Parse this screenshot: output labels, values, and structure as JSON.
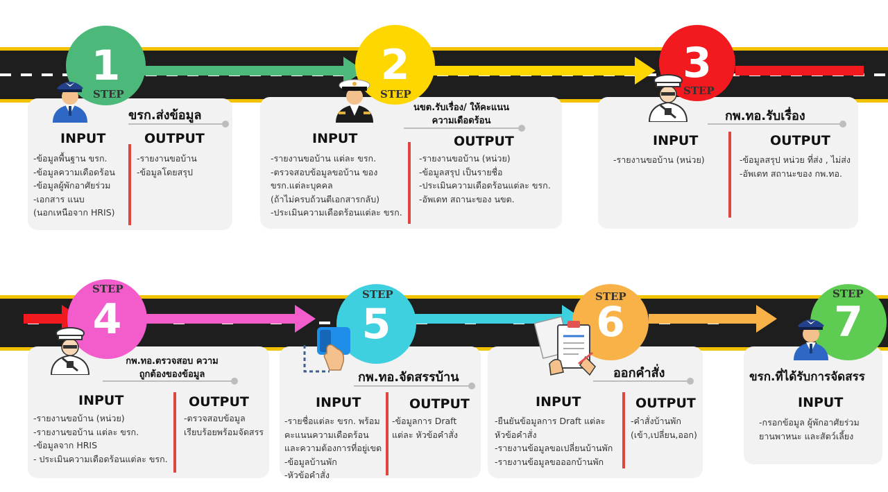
{
  "step_label": "STEP",
  "steps": [
    {
      "number": "1",
      "color": "#4cb87a",
      "title": "ขรก.ส่งข้อมูล",
      "input_label": "INPUT",
      "output_label": "OUTPUT",
      "inputs": [
        "-ข้อมูลพื้นฐาน ขรก.",
        "-ข้อมูลความเดือดร้อน",
        "-ข้อมูลผู้พักอาศัยร่วม",
        "-เอกสาร แนบ",
        "(นอกเหนือจาก HRIS)"
      ],
      "outputs": [
        "-รายงานขอบ้าน",
        "-ข้อมูลโดยสรุป"
      ]
    },
    {
      "number": "2",
      "color": "#fed700",
      "title": "นขต.รับเรื่อง/ ให้คะแนนความเดือดร้อน",
      "input_label": "INPUT",
      "output_label": "OUTPUT",
      "inputs": [
        "-รายงานขอบ้าน แต่ละ ขรก.",
        "-ตรวจสอบข้อมูลขอบ้าน ของ",
        "ขรก.แต่ละบุคคล",
        "(ถ้าไม่ครบถ้วนตีเอกสารกลับ)",
        "-ประเมินความเดือดร้อนแต่ละ ขรก."
      ],
      "outputs": [
        "-รายงานขอบ้าน (หน่วย)",
        "-ข้อมูลสรุป เป็นรายชื่อ",
        "-ประเมินความเดือดร้อนแต่ละ ขรก.",
        "-อัพเดท สถานะของ นขต."
      ]
    },
    {
      "number": "3",
      "color": "#f2191f",
      "title": "กพ.ทอ.รับเรื่อง",
      "input_label": "INPUT",
      "output_label": "OUTPUT",
      "inputs": [
        "-รายงานขอบ้าน (หน่วย)"
      ],
      "outputs": [
        "-ข้อมูลสรุป หน่วย ที่ส่ง , ไม่ส่ง",
        "-อัพเดท สถานะของ กพ.ทอ."
      ]
    },
    {
      "number": "4",
      "color": "#f25ccb",
      "title": "กพ.ทอ.ตรวจสอบ ความถูกต้องของข้อมูล",
      "input_label": "INPUT",
      "output_label": "OUTPUT",
      "inputs": [
        "-รายงานขอบ้าน (หน่วย)",
        "-รายงานขอบ้าน แต่ละ ขรก.",
        "-ข้อมูลจาก HRIS",
        "- ประเมินความเดือดร้อนแต่ละ ขรก."
      ],
      "outputs": [
        "-ตรวจสอบข้อมูล",
        "เรียบร้อยพร้อมจัดสรร"
      ]
    },
    {
      "number": "5",
      "color": "#3fd0e0",
      "title": "กพ.ทอ.จัดสรรบ้าน",
      "input_label": "INPUT",
      "output_label": "OUTPUT",
      "inputs": [
        "-รายชื่อแต่ละ ขรก. พร้อม",
        "คะแนนความเดือดร้อน",
        "และความต้องการที่อยู่เขต",
        "-ข้อมูลบ้านพัก",
        "-หัวข้อคำสั่ง"
      ],
      "outputs": [
        "-ข้อมูลการ Draft",
        "แต่ละ หัวข้อคำสั่ง"
      ]
    },
    {
      "number": "6",
      "color": "#f8b248",
      "title": "ออกคำสั่ง",
      "input_label": "INPUT",
      "output_label": "OUTPUT",
      "inputs": [
        "-ยืนยันข้อมูลการ Draft แต่ละ",
        "หัวข้อคำสั่ง",
        "-รายงานข้อมูลขอเปลี่ยนบ้านพัก",
        "-รายงานข้อมูลขอออกบ้านพัก"
      ],
      "outputs": [
        "-คำสั่งบ้านพัก",
        "(เข้า,เปลี่ยน,ออก)"
      ]
    },
    {
      "number": "7",
      "color": "#5ecb52",
      "title": "ขรก.ที่ได้รับการจัดสรร",
      "input_label": "INPUT",
      "inputs": [
        "-กรอกข้อมูล ผู้พักอาศัยร่วม",
        "ยานพาหนะ และสัตว์เลี้ยง"
      ]
    }
  ],
  "icons": [
    "pilot-officer-avatar",
    "navy-officer-avatar",
    "army-officer-avatar",
    "army-officer-avatar",
    "touch-hand-icon",
    "document-signing-icon",
    "pilot-officer-avatar"
  ],
  "colors": {
    "road": "#1e1e1e",
    "road_edge": "#f2c200",
    "divider": "#e0453f",
    "card": "#f2f2f2"
  }
}
